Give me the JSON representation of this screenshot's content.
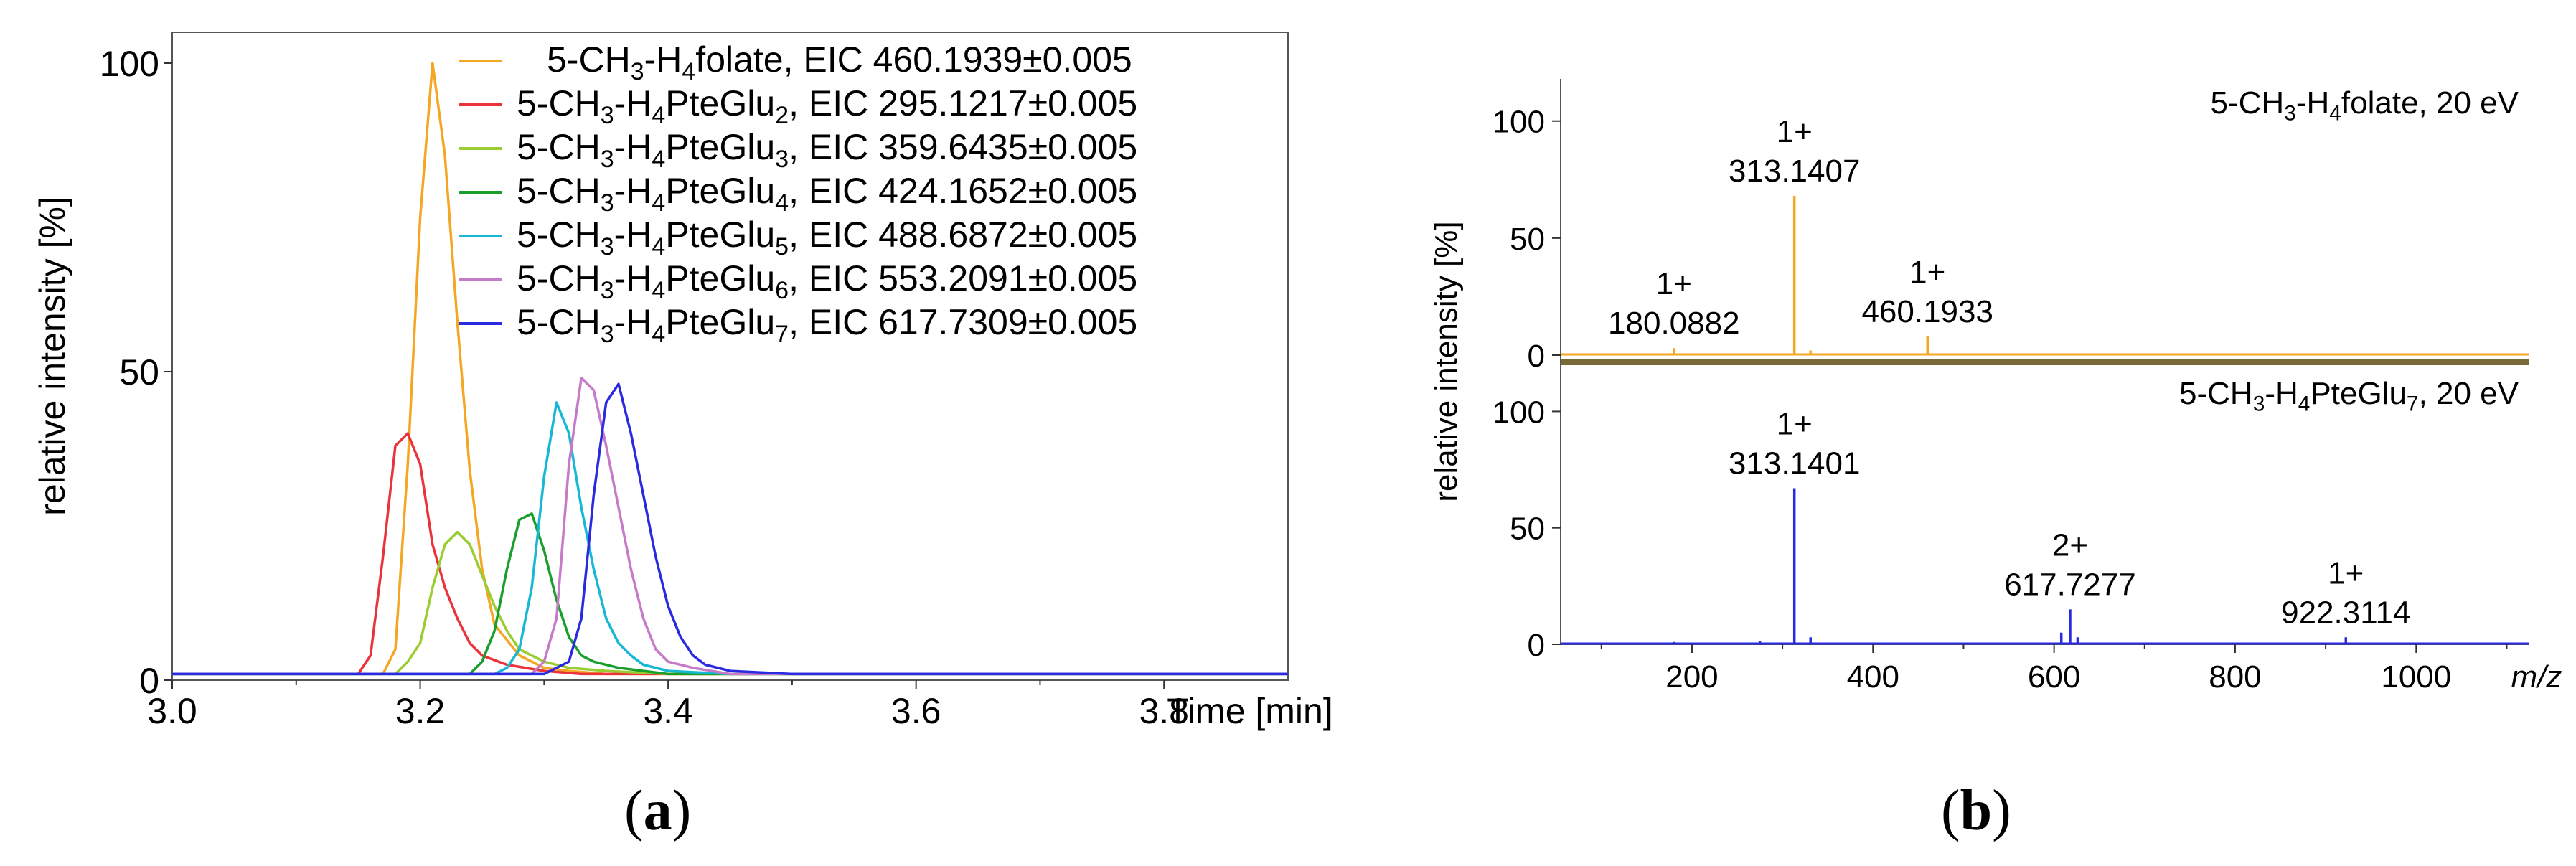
{
  "chart_data": [
    {
      "panel": "a",
      "type": "line",
      "caption": "(a)",
      "xlabel": "Time [min]",
      "ylabel": "relative intensity [%]",
      "xlim": [
        3.0,
        3.9
      ],
      "ylim": [
        0,
        105
      ],
      "xticks": [
        "3.0",
        "3.2",
        "3.4",
        "3.6",
        "3.8"
      ],
      "yticks": [
        "0",
        "50",
        "100"
      ],
      "legend_position": "top-right",
      "series": [
        {
          "name": "5-CH3-H4folate, EIC 460.1939±0.005",
          "legend_parts": [
            "5-CH",
            "3",
            "-H",
            "4",
            "folate, EIC 460.1939±0.005"
          ],
          "color": "#f5a623",
          "x": [
            3.0,
            3.17,
            3.18,
            3.19,
            3.2,
            3.21,
            3.22,
            3.23,
            3.24,
            3.25,
            3.26,
            3.28,
            3.3,
            3.32,
            3.35,
            3.4,
            3.9
          ],
          "y": [
            1,
            1,
            5,
            35,
            75,
            100,
            85,
            58,
            34,
            18,
            9,
            4,
            2,
            1.5,
            1,
            1,
            1
          ]
        },
        {
          "name": "5-CH3-H4PteGlu2, EIC 295.1217±0.005",
          "legend_parts": [
            "5-CH",
            "3",
            "-H",
            "4",
            "PteGlu",
            "2",
            ", EIC 295.1217±0.005"
          ],
          "color": "#e8343a",
          "x": [
            3.0,
            3.15,
            3.16,
            3.17,
            3.18,
            3.19,
            3.2,
            3.21,
            3.22,
            3.23,
            3.24,
            3.25,
            3.27,
            3.3,
            3.33,
            3.36,
            3.4,
            3.9
          ],
          "y": [
            1,
            1,
            4,
            20,
            38,
            40,
            35,
            22,
            15,
            10,
            6,
            4,
            2.5,
            1.5,
            1,
            1,
            1,
            1
          ]
        },
        {
          "name": "5-CH3-H4PteGlu3, EIC 359.6435±0.005",
          "legend_parts": [
            "5-CH",
            "3",
            "-H",
            "4",
            "PteGlu",
            "3",
            ", EIC 359.6435±0.005"
          ],
          "color": "#9acd32",
          "x": [
            3.0,
            3.18,
            3.19,
            3.2,
            3.21,
            3.22,
            3.23,
            3.24,
            3.25,
            3.26,
            3.27,
            3.28,
            3.3,
            3.32,
            3.35,
            3.4,
            3.9
          ],
          "y": [
            1,
            1,
            3,
            6,
            15,
            22,
            24,
            22,
            17,
            12,
            8,
            5,
            3,
            2,
            1.5,
            1,
            1
          ]
        },
        {
          "name": "5-CH3-H4PteGlu4, EIC 424.1652±0.005",
          "legend_parts": [
            "5-CH",
            "3",
            "-H",
            "4",
            "PteGlu",
            "4",
            ", EIC 424.1652±0.005"
          ],
          "color": "#1a9e2c",
          "x": [
            3.0,
            3.24,
            3.25,
            3.26,
            3.27,
            3.28,
            3.29,
            3.3,
            3.31,
            3.32,
            3.33,
            3.34,
            3.36,
            3.38,
            3.4,
            3.45,
            3.9
          ],
          "y": [
            1,
            1,
            3,
            8,
            18,
            26,
            27,
            21,
            13,
            7,
            4,
            3,
            2,
            1.5,
            1,
            1,
            1
          ]
        },
        {
          "name": "5-CH3-H4PteGlu5, EIC 488.6872±0.005",
          "legend_parts": [
            "5-CH",
            "3",
            "-H",
            "4",
            "PteGlu",
            "5",
            ", EIC 488.6872±0.005"
          ],
          "color": "#16b8d6",
          "x": [
            3.0,
            3.26,
            3.27,
            3.28,
            3.29,
            3.3,
            3.31,
            3.32,
            3.33,
            3.34,
            3.35,
            3.36,
            3.37,
            3.38,
            3.4,
            3.45,
            3.9
          ],
          "y": [
            1,
            1,
            2,
            5,
            15,
            33,
            45,
            40,
            28,
            18,
            10,
            6,
            4,
            2.5,
            1.5,
            1,
            1
          ]
        },
        {
          "name": "5-CH3-H4PteGlu6, EIC 553.2091±0.005",
          "legend_parts": [
            "5-CH",
            "3",
            "-H",
            "4",
            "PteGlu",
            "6",
            ", EIC 553.2091±0.005"
          ],
          "color": "#c77ac8",
          "x": [
            3.0,
            3.29,
            3.3,
            3.31,
            3.32,
            3.33,
            3.34,
            3.35,
            3.36,
            3.37,
            3.38,
            3.39,
            3.4,
            3.42,
            3.45,
            3.9
          ],
          "y": [
            1,
            1,
            3,
            10,
            35,
            49,
            47,
            38,
            28,
            18,
            10,
            5,
            3,
            2,
            1,
            1
          ]
        },
        {
          "name": "5-CH3-H4PteGlu7, EIC 617.7309±0.005",
          "legend_parts": [
            "5-CH",
            "3",
            "-H",
            "4",
            "PteGlu",
            "7",
            ", EIC 617.7309±0.005"
          ],
          "color": "#2a2ae0",
          "x": [
            3.0,
            3.3,
            3.32,
            3.33,
            3.34,
            3.35,
            3.36,
            3.37,
            3.38,
            3.39,
            3.4,
            3.41,
            3.42,
            3.43,
            3.45,
            3.5,
            3.9
          ],
          "y": [
            1,
            1,
            3,
            10,
            30,
            45,
            48,
            40,
            30,
            20,
            12,
            7,
            4,
            2.5,
            1.5,
            1,
            1
          ]
        }
      ]
    },
    {
      "panel": "b",
      "type": "bar",
      "caption": "(b)",
      "xlabel": "m/z",
      "ylabel": "relative intensity [%]",
      "xlim": [
        55,
        1125
      ],
      "xticks": [
        "200",
        "400",
        "600",
        "800",
        "1000"
      ],
      "subplots": [
        {
          "title": "5-CH3-H4folate, 20 eV",
          "title_parts": [
            "5-CH",
            "3",
            "-H",
            "4",
            "folate, 20 eV"
          ],
          "color": "#f5a623",
          "ylim": [
            0,
            118
          ],
          "yticks": [
            "0",
            "50",
            "100"
          ],
          "peaks": [
            {
              "mz": 180.0882,
              "intensity": 3,
              "charge": "1+",
              "label": "180.0882"
            },
            {
              "mz": 313.1407,
              "intensity": 68,
              "charge": "1+",
              "label": "313.1407"
            },
            {
              "mz": 331.0,
              "intensity": 2
            },
            {
              "mz": 460.1933,
              "intensity": 8,
              "charge": "1+",
              "label": "460.1933"
            }
          ]
        },
        {
          "title": "5-CH3-H4PteGlu7, 20 eV",
          "title_parts": [
            "5-CH",
            "3",
            "-H",
            "4",
            "PteGlu",
            "7",
            ", 20 eV"
          ],
          "color": "#2a2ae0",
          "ylim": [
            0,
            118
          ],
          "yticks": [
            "0",
            "50",
            "100"
          ],
          "peaks": [
            {
              "mz": 180.0,
              "intensity": 1
            },
            {
              "mz": 275.0,
              "intensity": 1.5
            },
            {
              "mz": 313.1401,
              "intensity": 67,
              "charge": "1+",
              "label": "313.1401"
            },
            {
              "mz": 331.0,
              "intensity": 3
            },
            {
              "mz": 608.0,
              "intensity": 5
            },
            {
              "mz": 617.7277,
              "intensity": 15,
              "charge": "2+",
              "label": "617.7277"
            },
            {
              "mz": 626.0,
              "intensity": 3
            },
            {
              "mz": 922.3114,
              "intensity": 3,
              "charge": "1+",
              "label": "922.3114"
            }
          ]
        }
      ]
    }
  ]
}
